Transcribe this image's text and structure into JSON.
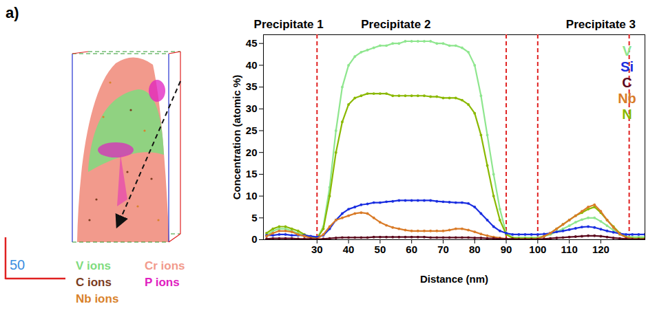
{
  "figure": {
    "panel_label": "a)",
    "scale_bar": {
      "value": 50,
      "color": "#e02020"
    },
    "ion_legend": [
      {
        "name": "V ions",
        "color": "#7fdc7f"
      },
      {
        "name": "Cr ions",
        "color": "#f29a8c"
      },
      {
        "name": "C ions",
        "color": "#7a3b1e"
      },
      {
        "name": "P ions",
        "color": "#e020c0"
      },
      {
        "name": "Nb ions",
        "color": "#d9822b"
      }
    ]
  },
  "chart_data": {
    "type": "line",
    "x_label": "Distance (nm)",
    "y_label": "Concentration (atomic %)",
    "x": [
      14,
      16,
      18,
      20,
      22,
      24,
      26,
      28,
      30,
      32,
      34,
      36,
      38,
      40,
      42,
      44,
      46,
      48,
      50,
      52,
      54,
      56,
      58,
      60,
      62,
      64,
      66,
      68,
      70,
      72,
      74,
      76,
      78,
      80,
      82,
      84,
      86,
      88,
      90,
      92,
      94,
      96,
      98,
      100,
      102,
      104,
      106,
      108,
      110,
      112,
      114,
      116,
      118,
      120,
      122,
      124,
      126,
      128,
      130,
      132,
      134
    ],
    "series": [
      {
        "name": "V",
        "color": "#8ee68e",
        "values": [
          1.0,
          2.0,
          2.5,
          2.5,
          2.0,
          1.5,
          1.0,
          0.5,
          0.3,
          3,
          12,
          25,
          35,
          40,
          42,
          43,
          43.5,
          44,
          44.5,
          44.5,
          45,
          45,
          45.5,
          45.5,
          45.5,
          45.5,
          45.5,
          45,
          45,
          44.5,
          44.5,
          44,
          43,
          40,
          33,
          24,
          15,
          7,
          1.5,
          0.5,
          0.5,
          0.5,
          0.5,
          0.5,
          0.8,
          1.2,
          1.8,
          2.5,
          3.2,
          4.0,
          4.6,
          5.0,
          5.0,
          4.2,
          3.2,
          2.2,
          1.2,
          0.7,
          0.6,
          0.6,
          0.6
        ]
      },
      {
        "name": "Si",
        "color": "#1a2ee0",
        "values": [
          1.0,
          1.0,
          1.2,
          1.2,
          1.0,
          1.0,
          1.0,
          0.8,
          0.6,
          1.0,
          2.5,
          4.5,
          6,
          7,
          7.5,
          8,
          8.2,
          8.5,
          8.5,
          8.7,
          8.8,
          9,
          9,
          9,
          9,
          9,
          9,
          8.8,
          8.7,
          8.6,
          8.5,
          8.5,
          8.3,
          7.5,
          6,
          4.5,
          3,
          2,
          1.5,
          1.2,
          1.2,
          1.2,
          1.2,
          1.2,
          1.3,
          1.5,
          1.8,
          2.0,
          2.3,
          2.6,
          2.9,
          3.0,
          2.8,
          2.4,
          2.0,
          1.7,
          1.4,
          1.2,
          1.2,
          1.2,
          1.2
        ]
      },
      {
        "name": "C",
        "color": "#5c0a1e",
        "values": [
          0.2,
          0.3,
          0.3,
          0.3,
          0.3,
          0.2,
          0.2,
          0.2,
          0.1,
          0.2,
          0.3,
          0.4,
          0.5,
          0.5,
          0.5,
          0.5,
          0.5,
          0.6,
          0.6,
          0.6,
          0.6,
          0.6,
          0.6,
          0.6,
          0.6,
          0.6,
          0.5,
          0.5,
          0.5,
          0.5,
          0.5,
          0.5,
          0.5,
          0.4,
          0.4,
          0.3,
          0.3,
          0.2,
          0.2,
          0.2,
          0.1,
          0.1,
          0.1,
          0.1,
          0.2,
          0.3,
          0.4,
          0.5,
          0.6,
          0.7,
          0.8,
          0.9,
          0.9,
          0.8,
          0.6,
          0.4,
          0.3,
          0.2,
          0.1,
          0.1,
          0.1
        ]
      },
      {
        "name": "Nb",
        "color": "#d97b28",
        "values": [
          0.8,
          1.5,
          2.0,
          2.0,
          1.8,
          1.2,
          0.8,
          0.4,
          0.2,
          1.2,
          3,
          4.5,
          5,
          5.5,
          6,
          6.2,
          6,
          5,
          4,
          3.3,
          2.8,
          2.5,
          2.2,
          2,
          2,
          2,
          2,
          2,
          2,
          2.2,
          2.5,
          2.5,
          2.2,
          1.8,
          1.3,
          0.9,
          0.6,
          0.4,
          0.2,
          0.1,
          0.1,
          0.1,
          0.1,
          0.2,
          0.8,
          1.5,
          2.5,
          3.5,
          4.5,
          5.5,
          6.5,
          7.5,
          8.0,
          6.5,
          4.5,
          2.8,
          1.3,
          0.5,
          0.2,
          0.1,
          0.1
        ]
      },
      {
        "name": "N",
        "color": "#8ab800",
        "values": [
          1.5,
          2.5,
          3.0,
          3.0,
          2.5,
          2.0,
          1.2,
          0.6,
          0.3,
          2.5,
          10,
          20,
          27,
          31,
          32.5,
          33,
          33.5,
          33.5,
          33.5,
          33.5,
          33,
          33,
          33,
          33,
          33,
          33,
          32.8,
          32.8,
          32.5,
          32.5,
          32.5,
          32,
          31,
          29,
          24,
          17,
          10,
          4.5,
          1.2,
          0.4,
          0.3,
          0.3,
          0.3,
          0.3,
          0.8,
          1.5,
          2.5,
          3.5,
          4.5,
          5.5,
          6.2,
          7.0,
          7.5,
          6.2,
          4.5,
          3.0,
          1.5,
          0.6,
          0.3,
          0.3,
          0.3
        ]
      }
    ],
    "xlim": [
      13,
      134
    ],
    "ylim": [
      0,
      47
    ],
    "xticks": [
      30,
      40,
      50,
      60,
      70,
      80,
      90,
      100,
      110,
      120
    ],
    "yticks": [
      0,
      5,
      10,
      15,
      20,
      25,
      30,
      35,
      40,
      45
    ],
    "grid": false,
    "legend": "top-right",
    "annotations": [
      {
        "text": "Precipitate 1",
        "x": 21
      },
      {
        "text": "Precipitate 2",
        "x": 55
      },
      {
        "text": "Precipitate 3",
        "x": 120
      }
    ],
    "boundaries": {
      "values": [
        30,
        90,
        100,
        129
      ],
      "color": "#e02020",
      "line_style": "dashed"
    }
  }
}
